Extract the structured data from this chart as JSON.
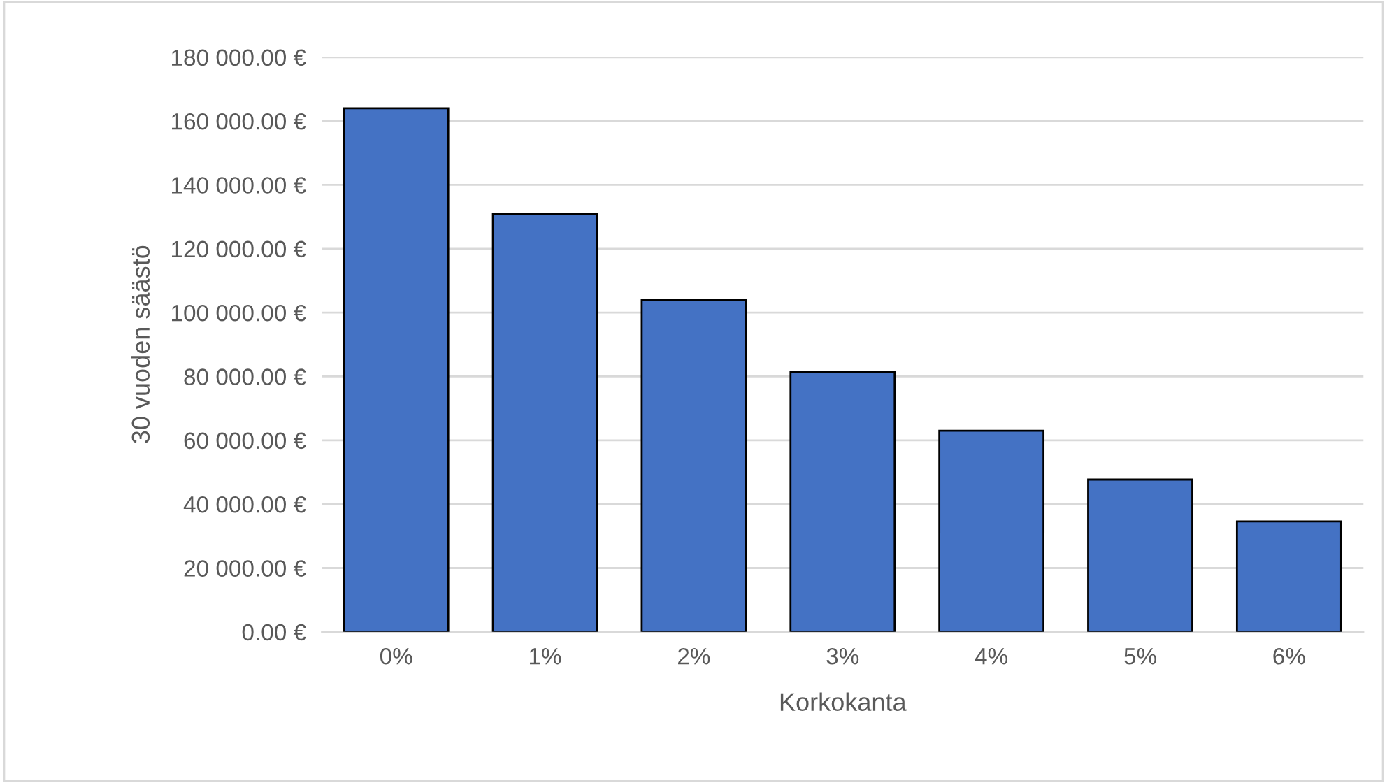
{
  "chart_data": {
    "type": "bar",
    "xlabel": "Korkokanta",
    "ylabel": "30 vuoden säästö",
    "categories": [
      "0%",
      "1%",
      "2%",
      "3%",
      "4%",
      "5%",
      "6%"
    ],
    "values": [
      164000,
      131000,
      104000,
      81500,
      63000,
      47700,
      34600
    ],
    "color": "#4472c4",
    "ylim": [
      0,
      180000
    ],
    "yticks": [
      {
        "value": 0,
        "label": "0.00 €"
      },
      {
        "value": 20000,
        "label": "20 000.00 €"
      },
      {
        "value": 40000,
        "label": "40 000.00 €"
      },
      {
        "value": 60000,
        "label": "60 000.00 €"
      },
      {
        "value": 80000,
        "label": "80 000.00 €"
      },
      {
        "value": 100000,
        "label": "100 000.00 €"
      },
      {
        "value": 120000,
        "label": "120 000.00 €"
      },
      {
        "value": 140000,
        "label": "140 000.00 €"
      },
      {
        "value": 160000,
        "label": "160 000.00 €"
      },
      {
        "value": 180000,
        "label": "180 000.00 €"
      }
    ],
    "grid": "y",
    "legend": false
  }
}
